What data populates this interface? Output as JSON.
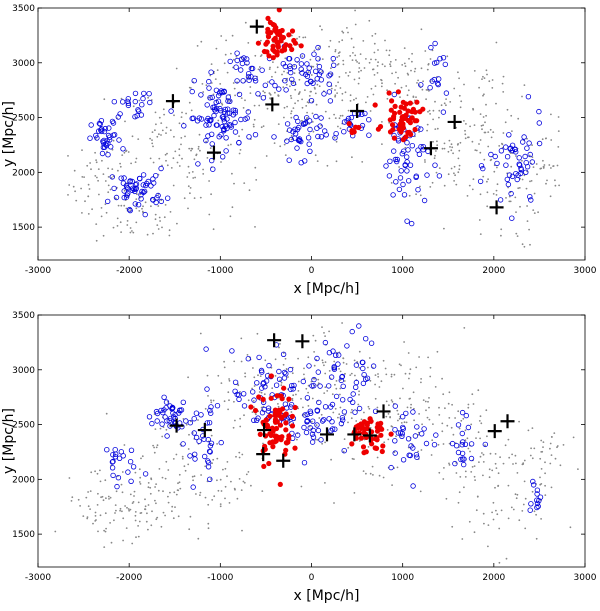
{
  "chart_data": [
    {
      "type": "scatter",
      "panel": "top",
      "xlabel": "x [Mpc/h]",
      "ylabel": "y [Mpc/h]",
      "xlim": [
        -3000,
        3000
      ],
      "ylim": [
        1200,
        3500
      ],
      "xticks": [
        "-3000",
        "-2000",
        "-1000",
        "0",
        "1000",
        "2000",
        "3000"
      ],
      "yticks": [
        "1500",
        "2000",
        "2500",
        "3000",
        "3500"
      ],
      "grid": false,
      "background_clusters": [
        {
          "cx": -2300,
          "cy": 1900,
          "sx": 180,
          "sy": 200,
          "n": 60
        },
        {
          "cx": -1900,
          "cy": 1600,
          "sx": 200,
          "sy": 120,
          "n": 50
        },
        {
          "cx": -1700,
          "cy": 2400,
          "sx": 250,
          "sy": 250,
          "n": 60
        },
        {
          "cx": -1300,
          "cy": 2000,
          "sx": 250,
          "sy": 250,
          "n": 60
        },
        {
          "cx": -900,
          "cy": 2900,
          "sx": 200,
          "sy": 200,
          "n": 50
        },
        {
          "cx": -500,
          "cy": 2700,
          "sx": 300,
          "sy": 250,
          "n": 80
        },
        {
          "cx": 0,
          "cy": 2600,
          "sx": 300,
          "sy": 300,
          "n": 90
        },
        {
          "cx": 300,
          "cy": 3000,
          "sx": 300,
          "sy": 200,
          "n": 70
        },
        {
          "cx": 700,
          "cy": 2900,
          "sx": 250,
          "sy": 200,
          "n": 60
        },
        {
          "cx": 1200,
          "cy": 2700,
          "sx": 250,
          "sy": 250,
          "n": 60
        },
        {
          "cx": 1500,
          "cy": 2200,
          "sx": 250,
          "sy": 250,
          "n": 70
        },
        {
          "cx": 1900,
          "cy": 2600,
          "sx": 200,
          "sy": 250,
          "n": 50
        },
        {
          "cx": 2100,
          "cy": 1800,
          "sx": 200,
          "sy": 250,
          "n": 60
        },
        {
          "cx": 2500,
          "cy": 2100,
          "sx": 150,
          "sy": 200,
          "n": 40
        }
      ],
      "structure_clusters": [
        {
          "cx": -2250,
          "cy": 2300,
          "sx": 80,
          "sy": 90,
          "n": 35
        },
        {
          "cx": -1900,
          "cy": 1850,
          "sx": 150,
          "sy": 90,
          "n": 55
        },
        {
          "cx": -1950,
          "cy": 2620,
          "sx": 110,
          "sy": 60,
          "n": 20
        },
        {
          "cx": -1000,
          "cy": 2500,
          "sx": 180,
          "sy": 150,
          "n": 90
        },
        {
          "cx": -650,
          "cy": 2900,
          "sx": 120,
          "sy": 90,
          "n": 25
        },
        {
          "cx": -250,
          "cy": 2950,
          "sx": 120,
          "sy": 90,
          "n": 25
        },
        {
          "cx": 100,
          "cy": 2850,
          "sx": 120,
          "sy": 120,
          "n": 25
        },
        {
          "cx": -100,
          "cy": 2350,
          "sx": 130,
          "sy": 110,
          "n": 40
        },
        {
          "cx": 450,
          "cy": 2450,
          "sx": 90,
          "sy": 80,
          "n": 20
        },
        {
          "cx": 1050,
          "cy": 2150,
          "sx": 130,
          "sy": 250,
          "n": 60
        },
        {
          "cx": 1380,
          "cy": 2850,
          "sx": 60,
          "sy": 120,
          "n": 15
        },
        {
          "cx": 2250,
          "cy": 2050,
          "sx": 150,
          "sy": 220,
          "n": 50
        }
      ],
      "group_clusters": [
        {
          "cx": -380,
          "cy": 3200,
          "sx": 90,
          "sy": 110,
          "n": 50
        },
        {
          "cx": 1000,
          "cy": 2500,
          "sx": 100,
          "sy": 90,
          "n": 55
        },
        {
          "cx": 460,
          "cy": 2400,
          "sx": 30,
          "sy": 25,
          "n": 6
        }
      ],
      "crosses": [
        {
          "x": -1520,
          "y": 2650
        },
        {
          "x": -1070,
          "y": 2180
        },
        {
          "x": -430,
          "y": 2620
        },
        {
          "x": -600,
          "y": 3330
        },
        {
          "x": 500,
          "y": 2560
        },
        {
          "x": 1310,
          "y": 2220
        },
        {
          "x": 1570,
          "y": 2460
        },
        {
          "x": 2030,
          "y": 1680
        }
      ]
    },
    {
      "type": "scatter",
      "panel": "bottom",
      "xlabel": "x [Mpc/h]",
      "ylabel": "y [Mpc/h]",
      "xlim": [
        -3000,
        3000
      ],
      "ylim": [
        1200,
        3500
      ],
      "xticks": [
        "-3000",
        "-2000",
        "-1000",
        "0",
        "1000",
        "2000",
        "3000"
      ],
      "yticks": [
        "1500",
        "2000",
        "2500",
        "3000",
        "3500"
      ],
      "grid": false,
      "background_clusters": [
        {
          "cx": -2300,
          "cy": 1800,
          "sx": 200,
          "sy": 180,
          "n": 55
        },
        {
          "cx": -1900,
          "cy": 1700,
          "sx": 200,
          "sy": 150,
          "n": 55
        },
        {
          "cx": -1600,
          "cy": 2200,
          "sx": 250,
          "sy": 250,
          "n": 55
        },
        {
          "cx": -1100,
          "cy": 2000,
          "sx": 250,
          "sy": 250,
          "n": 60
        },
        {
          "cx": -700,
          "cy": 2800,
          "sx": 250,
          "sy": 250,
          "n": 60
        },
        {
          "cx": -200,
          "cy": 2700,
          "sx": 300,
          "sy": 300,
          "n": 90
        },
        {
          "cx": 300,
          "cy": 3000,
          "sx": 300,
          "sy": 250,
          "n": 80
        },
        {
          "cx": 700,
          "cy": 2500,
          "sx": 300,
          "sy": 300,
          "n": 80
        },
        {
          "cx": 1200,
          "cy": 2700,
          "sx": 300,
          "sy": 250,
          "n": 60
        },
        {
          "cx": 1700,
          "cy": 2300,
          "sx": 250,
          "sy": 250,
          "n": 60
        },
        {
          "cx": 2000,
          "cy": 1800,
          "sx": 250,
          "sy": 250,
          "n": 60
        },
        {
          "cx": 2500,
          "cy": 2200,
          "sx": 150,
          "sy": 250,
          "n": 45
        }
      ],
      "structure_clusters": [
        {
          "cx": -2150,
          "cy": 2150,
          "sx": 100,
          "sy": 100,
          "n": 20
        },
        {
          "cx": -1550,
          "cy": 2580,
          "sx": 100,
          "sy": 80,
          "n": 40
        },
        {
          "cx": -1200,
          "cy": 2400,
          "sx": 120,
          "sy": 220,
          "n": 35
        },
        {
          "cx": -500,
          "cy": 2750,
          "sx": 180,
          "sy": 200,
          "n": 60
        },
        {
          "cx": 0,
          "cy": 2600,
          "sx": 150,
          "sy": 200,
          "n": 50
        },
        {
          "cx": 400,
          "cy": 2950,
          "sx": 180,
          "sy": 200,
          "n": 45
        },
        {
          "cx": 1100,
          "cy": 2400,
          "sx": 150,
          "sy": 150,
          "n": 30
        },
        {
          "cx": 1700,
          "cy": 2350,
          "sx": 80,
          "sy": 120,
          "n": 20
        },
        {
          "cx": 2450,
          "cy": 1850,
          "sx": 50,
          "sy": 80,
          "n": 12
        }
      ],
      "group_clusters": [
        {
          "cx": -400,
          "cy": 2500,
          "sx": 90,
          "sy": 180,
          "n": 75
        },
        {
          "cx": 600,
          "cy": 2420,
          "sx": 110,
          "sy": 90,
          "n": 45
        }
      ],
      "crosses": [
        {
          "x": -1480,
          "y": 2490
        },
        {
          "x": -1170,
          "y": 2450
        },
        {
          "x": -520,
          "y": 2450
        },
        {
          "x": -530,
          "y": 2230
        },
        {
          "x": -310,
          "y": 2170
        },
        {
          "x": -410,
          "y": 3270
        },
        {
          "x": -100,
          "y": 3260
        },
        {
          "x": 170,
          "y": 2410
        },
        {
          "x": 470,
          "y": 2410
        },
        {
          "x": 640,
          "y": 2400
        },
        {
          "x": 790,
          "y": 2620
        },
        {
          "x": 2010,
          "y": 2440
        },
        {
          "x": 2150,
          "y": 2530
        }
      ]
    }
  ],
  "colors": {
    "background_points": "#888888",
    "structure_circles": "#0000dd",
    "group_points": "#ee0000",
    "crosses": "#000000"
  }
}
